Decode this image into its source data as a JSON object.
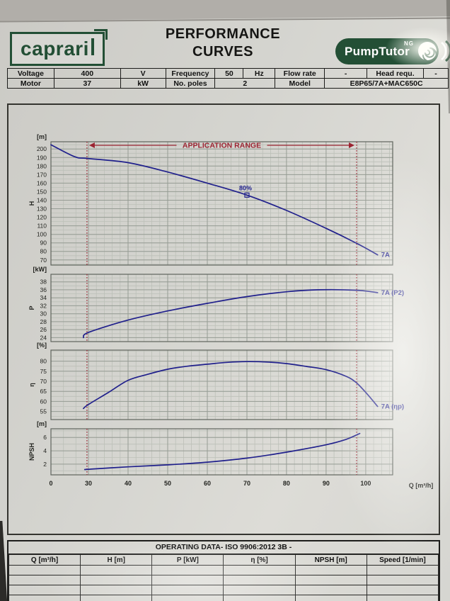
{
  "header": {
    "brand_logo": "caprari",
    "title_line1": "PERFORMANCE",
    "title_line2": "CURVES",
    "pumptutor": {
      "text": "PumpTutor",
      "superscript": "NG"
    }
  },
  "parameters": {
    "voltage_label": "Voltage",
    "voltage_value": "400",
    "voltage_unit": "V",
    "frequency_label": "Frequency",
    "frequency_value": "50",
    "frequency_unit": "Hz",
    "flow_rate_label": "Flow rate",
    "flow_rate_value": "-",
    "head_label": "Head requ.",
    "head_value": "-",
    "motor_label": "Motor",
    "motor_value": "37",
    "motor_unit": "kW",
    "poles_label": "No. poles",
    "poles_value": "2",
    "model_label": "Model",
    "model_value": "E8P65/7A+MAC650C"
  },
  "chart_data": {
    "type": "line",
    "x_axis": {
      "label": "Q [m³/h]",
      "tick_labels": [
        0,
        30,
        40,
        50,
        60,
        70,
        80,
        90,
        100
      ],
      "minor_step": 2,
      "xmax": 106.8,
      "compressed_zero_region": true,
      "operating_limits": {
        "min": 28.8,
        "max": 97.7
      }
    },
    "charts": [
      {
        "name": "head",
        "unit_label": "[m]",
        "axis_letter": "H",
        "ylim": [
          64,
          208.5
        ],
        "yticks": [
          70,
          80,
          90,
          100,
          110,
          120,
          130,
          140,
          150,
          160,
          170,
          180,
          190,
          200
        ],
        "y_minor_step": 5,
        "series": [
          {
            "label": "7A",
            "points": [
              [
                0,
                205
              ],
              [
                19,
                191
              ],
              [
                29,
                189
              ],
              [
                40,
                184
              ],
              [
                50,
                173
              ],
              [
                60,
                160
              ],
              [
                70,
                146
              ],
              [
                80,
                128
              ],
              [
                90,
                107
              ],
              [
                97.5,
                90
              ],
              [
                103,
                76
              ]
            ]
          }
        ],
        "annotations": {
          "application_range_label": "APPLICATION RANGE",
          "efficiency_marker": {
            "label": "80%",
            "q": 70,
            "value": 146
          }
        }
      },
      {
        "name": "power",
        "unit_label": "[kW]",
        "axis_letter": "P",
        "ylim": [
          23,
          39.9
        ],
        "yticks": [
          24,
          26,
          28,
          30,
          32,
          34,
          36,
          38
        ],
        "y_minor_step": 1,
        "series": [
          {
            "label": "7A (P2)",
            "points": [
              [
                26,
                24
              ],
              [
                30,
                25.3
              ],
              [
                40,
                28.4
              ],
              [
                50,
                30.7
              ],
              [
                60,
                32.6
              ],
              [
                70,
                34.3
              ],
              [
                80,
                35.5
              ],
              [
                88,
                36
              ],
              [
                97.5,
                35.9
              ],
              [
                103,
                35.3
              ]
            ]
          }
        ]
      },
      {
        "name": "efficiency",
        "unit_label": "[%]",
        "axis_letter": "η",
        "ylim": [
          51,
          85.5
        ],
        "yticks": [
          55,
          60,
          65,
          70,
          75,
          80
        ],
        "y_minor_step": 2.5,
        "series": [
          {
            "label": "7A (ηp)",
            "points": [
              [
                26,
                56.5
              ],
              [
                30,
                58.5
              ],
              [
                35,
                64.4
              ],
              [
                40,
                70.5
              ],
              [
                45,
                73.5
              ],
              [
                50,
                76
              ],
              [
                55,
                77.5
              ],
              [
                60,
                78.5
              ],
              [
                65,
                79.4
              ],
              [
                70,
                79.8
              ],
              [
                75,
                79.6
              ],
              [
                80,
                78.8
              ],
              [
                85,
                77.4
              ],
              [
                90,
                75.8
              ],
              [
                95,
                72.5
              ],
              [
                97.5,
                69.5
              ],
              [
                100,
                64.5
              ],
              [
                103,
                57.5
              ]
            ]
          }
        ]
      },
      {
        "name": "npsh",
        "unit_label": "[m]",
        "axis_letter": "NPSH",
        "ylim": [
          0.4,
          7.3
        ],
        "yticks": [
          2,
          4,
          6
        ],
        "y_minor_step": 1,
        "series": [
          {
            "label": "",
            "points": [
              [
                27,
                1.2
              ],
              [
                40,
                1.6
              ],
              [
                50,
                1.9
              ],
              [
                60,
                2.3
              ],
              [
                70,
                2.9
              ],
              [
                80,
                3.8
              ],
              [
                90,
                4.9
              ],
              [
                95,
                5.7
              ],
              [
                98.5,
                6.6
              ]
            ]
          }
        ]
      }
    ]
  },
  "operating_table": {
    "title": "OPERATING DATA- ISO 9906:2012 3B -",
    "headers": [
      "Q [m³/h]",
      "H [m]",
      "P [kW]",
      "η [%]",
      "NPSH [m]",
      "Speed [1/min]"
    ],
    "empty_row_count": 4
  },
  "colors": {
    "curve_blue": "#20208c",
    "annotation_red": "#9c2432",
    "brand_green": "#234f35"
  }
}
